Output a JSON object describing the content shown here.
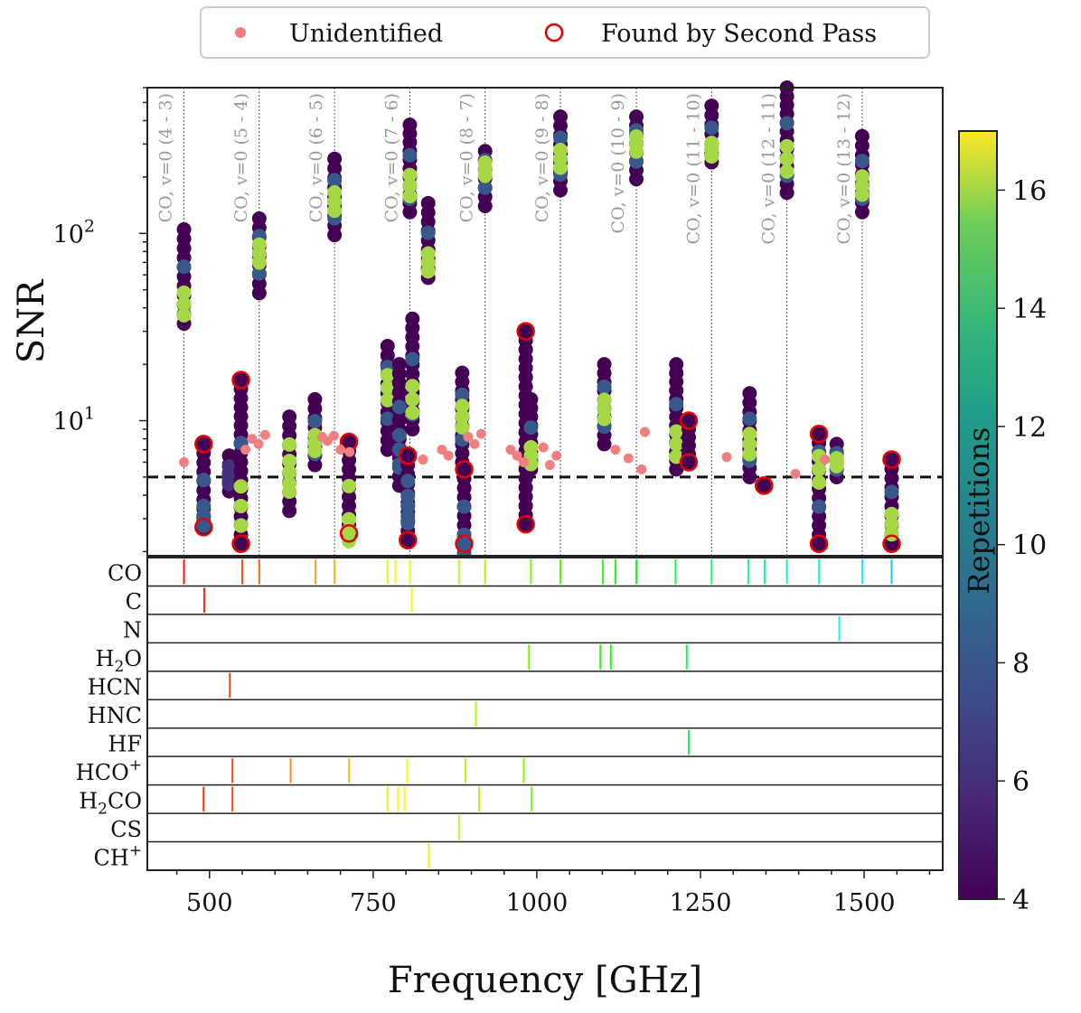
{
  "chart_data": {
    "type": "scatter",
    "xlabel": "Frequency [GHz]",
    "ylabel": "SNR",
    "xlim": [
      405,
      1620
    ],
    "ylim": [
      1.9,
      600
    ],
    "yscale": "log",
    "x_ticks": [
      {
        "value": 500,
        "label": "500"
      },
      {
        "value": 750,
        "label": "750"
      },
      {
        "value": 1000,
        "label": "1000"
      },
      {
        "value": 1250,
        "label": "1250"
      },
      {
        "value": 1500,
        "label": "1500"
      }
    ],
    "y_ticks": [
      {
        "value": 10,
        "base": "10",
        "exp": "1"
      },
      {
        "value": 100,
        "base": "10",
        "exp": "2"
      }
    ],
    "threshold": 5,
    "legend": {
      "unidentified": "Unidentified",
      "second_pass": "Found by Second Pass"
    },
    "colorbar": {
      "label": "Repetitions",
      "min": 4,
      "max": 17,
      "ticks": [
        "4",
        "6",
        "8",
        "10",
        "12",
        "14",
        "16"
      ]
    },
    "co_lines": [
      {
        "freq": 461,
        "label": "CO, v=0 (4 - 3)"
      },
      {
        "freq": 576,
        "label": "CO, v=0 (5 - 4)"
      },
      {
        "freq": 691,
        "label": "CO, v=0 (6 - 5)"
      },
      {
        "freq": 806,
        "label": "CO, v=0 (7 - 6)"
      },
      {
        "freq": 921,
        "label": "CO, v=0 (8 - 7)"
      },
      {
        "freq": 1036,
        "label": "CO, v=0 (9 - 8)"
      },
      {
        "freq": 1152,
        "label": "CO, v=0 (10 - 9)"
      },
      {
        "freq": 1267,
        "label": "CO, v=0 (11 - 10)"
      },
      {
        "freq": 1382,
        "label": "CO, v=0 (12 - 11)"
      },
      {
        "freq": 1497,
        "label": "CO, v=0 (13 - 12)"
      }
    ],
    "clusters": [
      {
        "x": 461,
        "ymin": 33,
        "ymax": 105,
        "mean": 42,
        "reps": [
          4,
          8,
          16
        ]
      },
      {
        "x": 491,
        "ymin": 2.7,
        "ymax": 7.5,
        "mean": 3.1,
        "reps": [
          4,
          8
        ],
        "second_pass": true
      },
      {
        "x": 530,
        "ymin": 4.2,
        "ymax": 6.5,
        "mean": 5,
        "reps": [
          4,
          6
        ]
      },
      {
        "x": 548,
        "ymin": 2.2,
        "ymax": 16.5,
        "mean": 3.5,
        "reps": [
          4,
          8,
          16
        ],
        "second_pass": true
      },
      {
        "x": 576,
        "ymin": 48,
        "ymax": 120,
        "mean": 78,
        "reps": [
          4,
          8,
          16
        ]
      },
      {
        "x": 622,
        "ymin": 3.3,
        "ymax": 10.5,
        "mean": 5.3,
        "reps": [
          4,
          16
        ]
      },
      {
        "x": 661,
        "ymin": 5.8,
        "ymax": 13,
        "mean": 7.6,
        "reps": [
          4,
          8,
          16
        ]
      },
      {
        "x": 691,
        "ymin": 98,
        "ymax": 250,
        "mean": 148,
        "reps": [
          4,
          8,
          16
        ]
      },
      {
        "x": 713,
        "ymin": 2.5,
        "ymax": 7.7,
        "mean": 2.6,
        "reps": [
          4,
          16
        ],
        "second_pass": true
      },
      {
        "x": 772,
        "ymin": 7,
        "ymax": 25,
        "mean": 15,
        "reps": [
          4,
          8,
          16
        ]
      },
      {
        "x": 790,
        "ymin": 4.5,
        "ymax": 20,
        "mean": 7,
        "reps": [
          4,
          8
        ]
      },
      {
        "x": 803,
        "ymin": 2.3,
        "ymax": 6.5,
        "mean": 3.5,
        "reps": [
          4,
          8
        ],
        "second_pass": true
      },
      {
        "x": 806,
        "ymin": 130,
        "ymax": 380,
        "mean": 180,
        "reps": [
          4,
          8,
          16
        ]
      },
      {
        "x": 810,
        "ymin": 9,
        "ymax": 35,
        "mean": 13,
        "reps": [
          4,
          8,
          16
        ]
      },
      {
        "x": 834,
        "ymin": 58,
        "ymax": 145,
        "mean": 70,
        "reps": [
          4,
          8,
          16
        ]
      },
      {
        "x": 886,
        "ymin": 6,
        "ymax": 18,
        "mean": 10.5,
        "reps": [
          4,
          8,
          16
        ]
      },
      {
        "x": 889,
        "ymin": 2.2,
        "ymax": 5.5,
        "mean": 2.2,
        "reps": [
          4,
          8
        ],
        "second_pass": true
      },
      {
        "x": 921,
        "ymin": 140,
        "ymax": 275,
        "mean": 220,
        "reps": [
          4,
          8,
          16
        ]
      },
      {
        "x": 983,
        "ymin": 2.8,
        "ymax": 30,
        "mean": 30,
        "reps": [
          4
        ],
        "second_pass": true
      },
      {
        "x": 991,
        "ymin": 5.5,
        "ymax": 13,
        "mean": 6.5,
        "reps": [
          4,
          8,
          16
        ]
      },
      {
        "x": 1036,
        "ymin": 170,
        "ymax": 420,
        "mean": 250,
        "reps": [
          4,
          8,
          16
        ]
      },
      {
        "x": 1103,
        "ymin": 7.5,
        "ymax": 20,
        "mean": 11.5,
        "reps": [
          4,
          8,
          16
        ]
      },
      {
        "x": 1152,
        "ymin": 195,
        "ymax": 420,
        "mean": 300,
        "reps": [
          4,
          8,
          16
        ]
      },
      {
        "x": 1213,
        "ymin": 5.5,
        "ymax": 20,
        "mean": 7.5,
        "reps": [
          4,
          8,
          16
        ]
      },
      {
        "x": 1232,
        "ymin": 6,
        "ymax": 10,
        "mean": 8,
        "reps": [
          4
        ],
        "second_pass": true
      },
      {
        "x": 1267,
        "ymin": 240,
        "ymax": 480,
        "mean": 280,
        "reps": [
          4,
          8,
          16
        ]
      },
      {
        "x": 1325,
        "ymin": 5,
        "ymax": 14,
        "mean": 7.5,
        "reps": [
          4,
          8,
          16
        ]
      },
      {
        "x": 1347,
        "ymin": 4.5,
        "ymax": 4.5,
        "mean": 4.5,
        "reps": [
          4
        ],
        "second_pass": true
      },
      {
        "x": 1382,
        "ymin": 165,
        "ymax": 600,
        "mean": 250,
        "reps": [
          4,
          8,
          16
        ]
      },
      {
        "x": 1431,
        "ymin": 2.2,
        "ymax": 8.5,
        "mean": 5.5,
        "reps": [
          4,
          8,
          16
        ],
        "second_pass": true
      },
      {
        "x": 1458,
        "ymin": 5,
        "ymax": 7.5,
        "mean": 6,
        "reps": [
          4,
          8,
          16
        ]
      },
      {
        "x": 1497,
        "ymin": 130,
        "ymax": 330,
        "mean": 180,
        "reps": [
          4,
          8,
          16
        ]
      },
      {
        "x": 1542,
        "ymin": 2.2,
        "ymax": 6.2,
        "mean": 2.8,
        "reps": [
          4,
          8,
          16
        ],
        "second_pass": true
      }
    ],
    "unidentified": [
      {
        "x": 461,
        "y": 6
      },
      {
        "x": 555,
        "y": 7
      },
      {
        "x": 565,
        "y": 8
      },
      {
        "x": 575,
        "y": 7.5
      },
      {
        "x": 585,
        "y": 8.4
      },
      {
        "x": 672,
        "y": 8.2
      },
      {
        "x": 680,
        "y": 7.8
      },
      {
        "x": 690,
        "y": 8.3
      },
      {
        "x": 700,
        "y": 7
      },
      {
        "x": 714,
        "y": 6.8
      },
      {
        "x": 826,
        "y": 6.2
      },
      {
        "x": 855,
        "y": 7
      },
      {
        "x": 865,
        "y": 6.5
      },
      {
        "x": 895,
        "y": 8.2
      },
      {
        "x": 905,
        "y": 7.5
      },
      {
        "x": 915,
        "y": 8.5
      },
      {
        "x": 960,
        "y": 7
      },
      {
        "x": 970,
        "y": 6.5
      },
      {
        "x": 980,
        "y": 6
      },
      {
        "x": 1010,
        "y": 7.2
      },
      {
        "x": 1020,
        "y": 5.8
      },
      {
        "x": 1030,
        "y": 6.5
      },
      {
        "x": 1120,
        "y": 7
      },
      {
        "x": 1140,
        "y": 6.3
      },
      {
        "x": 1160,
        "y": 5.5
      },
      {
        "x": 1165,
        "y": 8.7
      },
      {
        "x": 1290,
        "y": 6.4
      },
      {
        "x": 1395,
        "y": 5.2
      },
      {
        "x": 1440,
        "y": 6.2
      }
    ],
    "species": [
      {
        "name": "CO",
        "lines": [
          461,
          550,
          576,
          662,
          691,
          772,
          784,
          806,
          881,
          921,
          991,
          1036,
          1101,
          1120,
          1152,
          1212,
          1267,
          1323,
          1348,
          1382,
          1431,
          1497,
          1542
        ]
      },
      {
        "name": "C",
        "lines": [
          492,
          809
        ]
      },
      {
        "name": "N",
        "lines": [
          1462
        ]
      },
      {
        "name": "H2O",
        "label_main": "H",
        "label_sub": "2",
        "label_tail": "O",
        "lines": [
          988,
          1097,
          1113,
          1229
        ]
      },
      {
        "name": "HCN",
        "lines": [
          531
        ]
      },
      {
        "name": "HNC",
        "lines": [
          907
        ]
      },
      {
        "name": "HF",
        "lines": [
          1232
        ]
      },
      {
        "name": "HCO+",
        "label_main": "HCO",
        "label_sup": "+",
        "lines": [
          535,
          624,
          713,
          802,
          891,
          980
        ]
      },
      {
        "name": "H2CO",
        "label_main": "H",
        "label_sub": "2",
        "label_tail": "CO",
        "lines": [
          491,
          535,
          772,
          788,
          798,
          912,
          992
        ]
      },
      {
        "name": "CS",
        "lines": [
          881
        ]
      },
      {
        "name": "CH+",
        "label_main": "CH",
        "label_sup": "+",
        "lines": [
          835
        ]
      }
    ]
  }
}
